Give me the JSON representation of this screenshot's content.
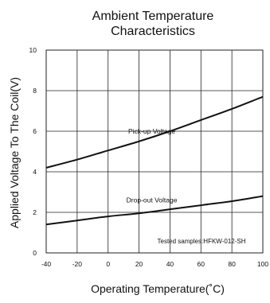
{
  "chart_data": {
    "type": "line",
    "title_lines": [
      "Ambient Temperature",
      "Characteristics"
    ],
    "xlabel": "Operating Temperature(˚C)",
    "ylabel": "Applied Voltage To The Coil(V)",
    "xlim": [
      -40,
      100
    ],
    "ylim": [
      0,
      10
    ],
    "x_ticks": [
      -40,
      -20,
      0,
      20,
      40,
      60,
      80,
      100
    ],
    "y_ticks": [
      0,
      2,
      4,
      6,
      8,
      10
    ],
    "grid": true,
    "annotation": "Tested samples:HFKW-012-SH",
    "series": [
      {
        "name": "Pick-up Voltage",
        "x": [
          -40,
          -20,
          0,
          20,
          40,
          60,
          80,
          100
        ],
        "y": [
          4.2,
          4.6,
          5.05,
          5.5,
          6.0,
          6.55,
          7.1,
          7.7
        ]
      },
      {
        "name": "Drop-out Voltage",
        "x": [
          -40,
          -20,
          0,
          20,
          40,
          60,
          80,
          100
        ],
        "y": [
          1.4,
          1.6,
          1.8,
          1.95,
          2.15,
          2.35,
          2.55,
          2.8
        ]
      }
    ]
  },
  "colors": {
    "line": "#111111",
    "grid": "#222222"
  }
}
